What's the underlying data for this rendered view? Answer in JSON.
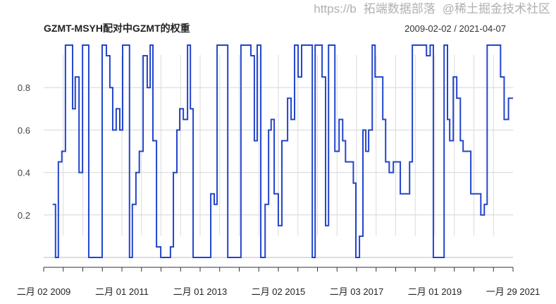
{
  "chart_data": {
    "type": "line",
    "step": true,
    "title": "GZMT-MSYH配对中GZMT的权重",
    "subtitle": "2009-02-02 / 2021-04-07",
    "xlim": [
      "2009-02-02",
      "2021-04-07"
    ],
    "ylim": [
      0,
      1
    ],
    "yticks": [
      0.2,
      0.4,
      0.6,
      0.8
    ],
    "ytick_labels": [
      "0.2",
      "0.4",
      "0.6",
      "0.8"
    ],
    "xtick_labels": [
      "二月 02 2009",
      "二月 01 2011",
      "二月 01 2013",
      "二月 02 2015",
      "二月 03 2017",
      "二月 01 2019",
      "一月 29 2021"
    ],
    "grid": true,
    "line_color": "#2244cc",
    "points": [
      [
        "2009-04-28",
        0.25
      ],
      [
        "2009-05-25",
        0
      ],
      [
        "2009-06-21",
        0.45
      ],
      [
        "2009-07-24",
        0.5
      ],
      [
        "2009-08-27",
        1
      ],
      [
        "2009-11-03",
        0.7
      ],
      [
        "2009-11-28",
        0.85
      ],
      [
        "2010-01-03",
        0.4
      ],
      [
        "2010-02-05",
        1
      ],
      [
        "2010-04-05",
        0
      ],
      [
        "2010-08-10",
        1
      ],
      [
        "2010-09-19",
        0.95
      ],
      [
        "2010-10-22",
        0.8
      ],
      [
        "2010-11-18",
        0.6
      ],
      [
        "2010-12-21",
        0.7
      ],
      [
        "2011-01-24",
        0.6
      ],
      [
        "2011-02-20",
        1
      ],
      [
        "2011-04-26",
        0
      ],
      [
        "2011-05-23",
        0.25
      ],
      [
        "2011-06-26",
        0.4
      ],
      [
        "2011-07-28",
        0.5
      ],
      [
        "2011-09-02",
        0.95
      ],
      [
        "2011-10-11",
        0.8
      ],
      [
        "2011-11-08",
        1
      ],
      [
        "2011-12-04",
        0.55
      ],
      [
        "2012-01-07",
        0.05
      ],
      [
        "2012-02-16",
        0
      ],
      [
        "2012-05-18",
        0.05
      ],
      [
        "2012-06-15",
        0.4
      ],
      [
        "2012-07-18",
        0.6
      ],
      [
        "2012-08-14",
        0.7
      ],
      [
        "2012-09-17",
        0.65
      ],
      [
        "2012-10-27",
        1
      ],
      [
        "2012-11-23",
        0.7
      ],
      [
        "2012-12-19",
        0
      ],
      [
        "2013-06-04",
        0.3
      ],
      [
        "2013-07-07",
        0.25
      ],
      [
        "2013-08-03",
        1
      ],
      [
        "2013-11-12",
        0
      ],
      [
        "2014-03-17",
        1
      ],
      [
        "2014-06-19",
        0.95
      ],
      [
        "2014-07-22",
        0.55
      ],
      [
        "2014-08-18",
        1
      ],
      [
        "2014-09-21",
        0
      ],
      [
        "2014-11-01",
        0.25
      ],
      [
        "2014-12-04",
        0.6
      ],
      [
        "2014-12-28",
        0.65
      ],
      [
        "2015-01-26",
        0.3
      ],
      [
        "2015-03-06",
        0.15
      ],
      [
        "2015-04-09",
        0.55
      ],
      [
        "2015-06-02",
        0.75
      ],
      [
        "2015-07-05",
        0.65
      ],
      [
        "2015-08-07",
        1
      ],
      [
        "2015-09-10",
        0.85
      ],
      [
        "2015-10-13",
        1
      ],
      [
        "2016-01-22",
        0
      ],
      [
        "2016-02-18",
        1
      ],
      [
        "2016-04-24",
        0.85
      ],
      [
        "2016-05-27",
        0.15
      ],
      [
        "2016-06-24",
        1
      ],
      [
        "2016-08-23",
        0.5
      ],
      [
        "2016-10-02",
        0.65
      ],
      [
        "2016-11-05",
        0.55
      ],
      [
        "2016-12-02",
        0.45
      ],
      [
        "2017-02-14",
        0.35
      ],
      [
        "2017-03-10",
        0
      ],
      [
        "2017-04-13",
        0.1
      ],
      [
        "2017-05-16",
        0.6
      ],
      [
        "2017-06-12",
        0.5
      ],
      [
        "2017-07-09",
        0.6
      ],
      [
        "2017-08-12",
        1
      ],
      [
        "2017-09-08",
        0.85
      ],
      [
        "2017-11-20",
        0.65
      ],
      [
        "2017-12-17",
        0.45
      ],
      [
        "2018-01-20",
        0.4
      ],
      [
        "2018-02-28",
        0.45
      ],
      [
        "2018-05-05",
        0.3
      ],
      [
        "2018-08-01",
        0.45
      ],
      [
        "2018-08-27",
        1
      ],
      [
        "2019-01-08",
        0.95
      ],
      [
        "2019-02-12",
        1
      ],
      [
        "2019-03-14",
        0
      ],
      [
        "2019-06-24",
        1
      ],
      [
        "2019-07-26",
        0.65
      ],
      [
        "2019-08-16",
        0.55
      ],
      [
        "2019-09-19",
        0.85
      ],
      [
        "2019-10-22",
        0.75
      ],
      [
        "2019-11-25",
        0.55
      ],
      [
        "2019-12-21",
        0.5
      ],
      [
        "2020-03-03",
        0.3
      ],
      [
        "2020-06-06",
        0.2
      ],
      [
        "2020-07-09",
        0.25
      ],
      [
        "2020-08-05",
        1
      ],
      [
        "2020-12-10",
        0.85
      ],
      [
        "2021-01-13",
        0.65
      ],
      [
        "2021-02-23",
        0.75
      ],
      [
        "2021-04-07",
        0.75
      ]
    ]
  },
  "watermark": {
    "line1": "拓端数据部落",
    "line2": "@稀土掘金技术社区",
    "url_fragment": "https://b"
  }
}
